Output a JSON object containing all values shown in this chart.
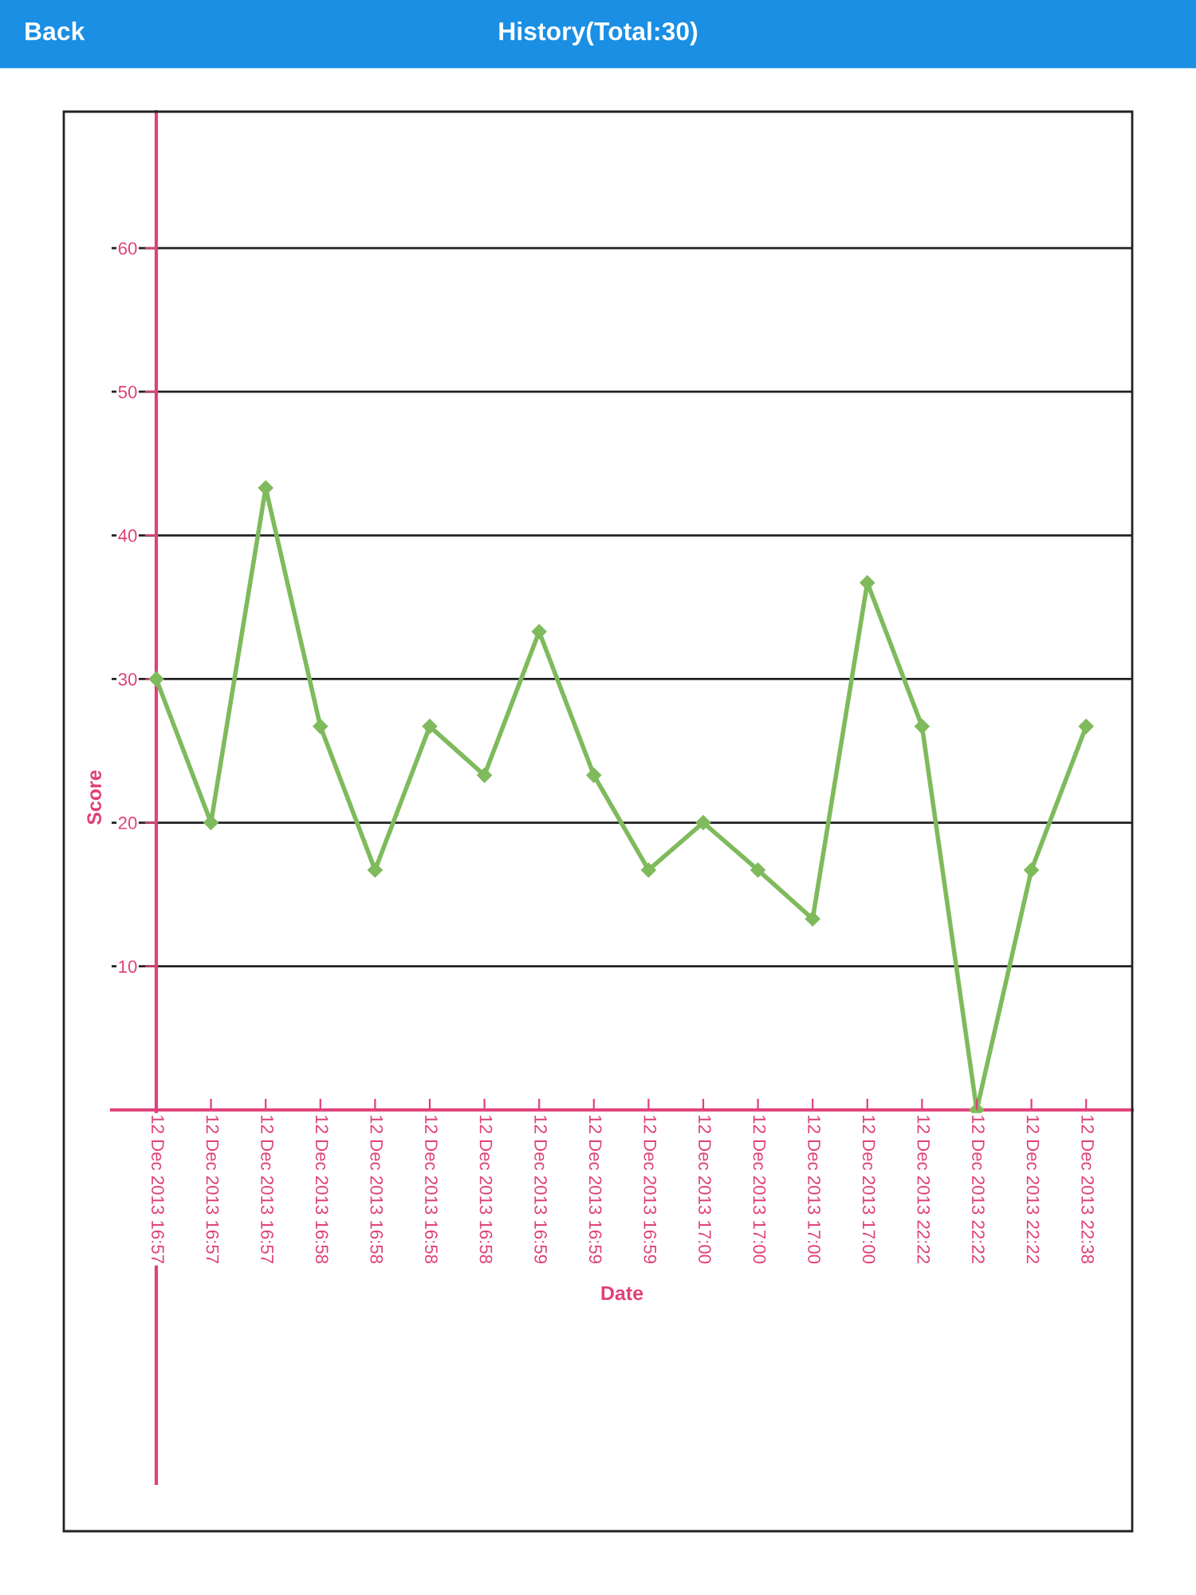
{
  "chart_data": {
    "type": "line",
    "title": "History(Total:30)",
    "annotations": [
      "Back"
    ],
    "xlabel": "Date",
    "ylabel": "Score",
    "categories": [
      "12 Dec 2013 16:57",
      "12 Dec 2013 16:57",
      "12 Dec 2013 16:57",
      "12 Dec 2013 16:58",
      "12 Dec 2013 16:58",
      "12 Dec 2013 16:58",
      "12 Dec 2013 16:58",
      "12 Dec 2013 16:59",
      "12 Dec 2013 16:59",
      "12 Dec 2013 16:59",
      "12 Dec 2013 17:00",
      "12 Dec 2013 17:00",
      "12 Dec 2013 17:00",
      "12 Dec 2013 17:00",
      "12 Dec 2013 22:22",
      "12 Dec 2013 22:22",
      "12 Dec 2013 22:22",
      "12 Dec 2013 22:38"
    ],
    "series": [
      {
        "color": "#7fba5c",
        "values": [
          30,
          20,
          43.3,
          26.7,
          16.7,
          26.7,
          23.3,
          33.3,
          23.3,
          16.7,
          20,
          16.7,
          13.3,
          36.7,
          26.7,
          0,
          16.7,
          26.7
        ]
      }
    ],
    "ylim": [
      -26,
      69.5
    ],
    "yticks": [
      10,
      20,
      30,
      40,
      50,
      60
    ],
    "grid": "y",
    "marker": "diamond",
    "line_style": "solid",
    "legend": false
  }
}
